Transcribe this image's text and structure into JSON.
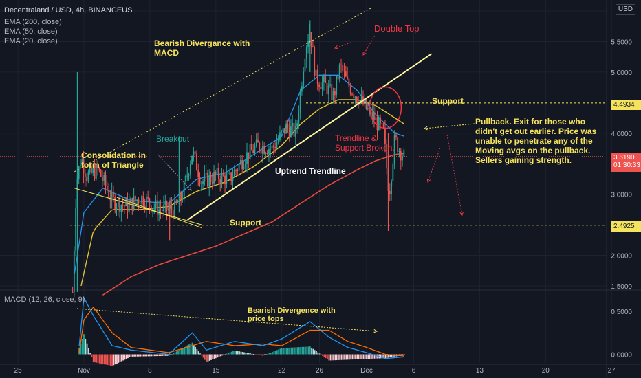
{
  "header": {
    "title": "Decentraland / USD, 4h, BINANCEUS",
    "indicators": [
      "EMA (200, close)",
      "EMA (50, close)",
      "EMA (20, close)"
    ],
    "macd_label": "MACD (12, 26, close, 9)",
    "currency": "USD"
  },
  "price_axis": {
    "ticks": [
      {
        "v": 6.0,
        "label": "6."
      },
      {
        "v": 5.5,
        "label": "5.5000"
      },
      {
        "v": 5.0,
        "label": "5.0000"
      },
      {
        "v": 4.0,
        "label": "4.0000"
      },
      {
        "v": 3.0,
        "label": "3.0000"
      },
      {
        "v": 2.0,
        "label": "2.0000"
      },
      {
        "v": 1.5,
        "label": "1.5000"
      }
    ],
    "current_price": "3.6190",
    "countdown": "01:30:33",
    "support_levels": [
      "4.4934",
      "2.4925"
    ]
  },
  "macd_axis": {
    "ticks": [
      {
        "v": 0.5,
        "label": "0.5000"
      },
      {
        "v": 0.0,
        "label": "0.0000"
      }
    ]
  },
  "time_axis": {
    "ticks": [
      {
        "t": -7,
        "label": "25"
      },
      {
        "t": 0,
        "label": "Nov"
      },
      {
        "t": 7,
        "label": "8"
      },
      {
        "t": 14,
        "label": "15"
      },
      {
        "t": 21,
        "label": "22"
      },
      {
        "t": 25,
        "label": "26"
      },
      {
        "t": 30,
        "label": "Dec"
      },
      {
        "t": 35,
        "label": "6"
      },
      {
        "t": 42,
        "label": "13"
      },
      {
        "t": 49,
        "label": "20"
      },
      {
        "t": 56,
        "label": "27"
      }
    ]
  },
  "annotations": {
    "divergence_macd": "Bearish Divergance with MACD",
    "double_top": "Double Top",
    "support_top": "Support",
    "support_bottom": "Support",
    "breakout": "Breakout",
    "consolidation": "Consolidation in form of Triangle",
    "uptrend": "Uptrend Trendline",
    "trendline_broken": "Trendline & Support Broken.",
    "pullback": "Pullback. Exit for those who didn't get out earlier. Price was unable to penetrate any of the Moving avgs on the pullback. Sellers gaining strength.",
    "divergence_price": "Bearish Divergence with price tops"
  },
  "colors": {
    "background": "#131722",
    "up": "#26a69a",
    "down": "#ef5350",
    "ema200": "#e84a3f",
    "ema50": "#e5c430",
    "ema20": "#2196f3",
    "macd_line": "#2196f3",
    "signal_line": "#ff6d00",
    "annotation_yellow": "#f5e35b",
    "annotation_red": "#f23645",
    "trendline": "#fff59d"
  },
  "chart_data": {
    "type": "candlestick",
    "x_unit": "days since Oct 31",
    "price_range": [
      1.5,
      6.0
    ],
    "macd_range": [
      -0.1,
      0.7
    ],
    "price_anchors": [
      {
        "t": -1.2,
        "close": 1.4
      },
      {
        "t": -0.8,
        "close": 3.2
      },
      {
        "t": -0.3,
        "close": 3.6
      },
      {
        "t": 0.3,
        "close": 3.3
      },
      {
        "t": 1.5,
        "close": 3.4
      },
      {
        "t": 3,
        "close": 2.9
      },
      {
        "t": 4.5,
        "close": 2.8
      },
      {
        "t": 6,
        "close": 2.95
      },
      {
        "t": 8,
        "close": 2.75
      },
      {
        "t": 9.6,
        "close": 2.75
      },
      {
        "t": 10.5,
        "close": 3.0
      },
      {
        "t": 11.5,
        "close": 3.7
      },
      {
        "t": 12.5,
        "close": 3.2
      },
      {
        "t": 14,
        "close": 3.3
      },
      {
        "t": 15.5,
        "close": 3.25
      },
      {
        "t": 17,
        "close": 3.6
      },
      {
        "t": 18.5,
        "close": 3.8
      },
      {
        "t": 20,
        "close": 3.75
      },
      {
        "t": 21.5,
        "close": 4.1
      },
      {
        "t": 22.5,
        "close": 4.0
      },
      {
        "t": 23.5,
        "close": 5.4
      },
      {
        "t": 24,
        "close": 5.7
      },
      {
        "t": 24.6,
        "close": 4.9
      },
      {
        "t": 25.5,
        "close": 4.8
      },
      {
        "t": 26.5,
        "close": 4.6
      },
      {
        "t": 27.2,
        "close": 5.1
      },
      {
        "t": 28,
        "close": 4.8
      },
      {
        "t": 29,
        "close": 4.6
      },
      {
        "t": 30,
        "close": 4.4
      },
      {
        "t": 31,
        "close": 4.2
      },
      {
        "t": 31.8,
        "close": 4.0
      },
      {
        "t": 32.4,
        "close": 3.0
      },
      {
        "t": 33,
        "close": 3.9
      },
      {
        "t": 33.6,
        "close": 3.7
      },
      {
        "t": 34,
        "close": 3.62
      }
    ],
    "ema20": [
      [
        -1,
        1.7
      ],
      [
        0,
        2.7
      ],
      [
        2,
        3.1
      ],
      [
        5,
        2.9
      ],
      [
        9,
        2.85
      ],
      [
        12,
        3.25
      ],
      [
        15,
        3.35
      ],
      [
        18,
        3.65
      ],
      [
        21,
        3.95
      ],
      [
        23,
        4.7
      ],
      [
        25,
        4.95
      ],
      [
        27,
        4.95
      ],
      [
        29,
        4.7
      ],
      [
        31,
        4.3
      ],
      [
        33,
        4.0
      ],
      [
        34,
        3.95
      ]
    ],
    "ema50": [
      [
        -0.3,
        1.5
      ],
      [
        1,
        2.4
      ],
      [
        3,
        2.75
      ],
      [
        6,
        2.75
      ],
      [
        9,
        2.8
      ],
      [
        12,
        3.05
      ],
      [
        15,
        3.2
      ],
      [
        18,
        3.45
      ],
      [
        21,
        3.8
      ],
      [
        23,
        4.15
      ],
      [
        25,
        4.4
      ],
      [
        27,
        4.55
      ],
      [
        29,
        4.55
      ],
      [
        31,
        4.45
      ],
      [
        33,
        4.25
      ],
      [
        34,
        4.15
      ]
    ],
    "ema200": [
      [
        2,
        1.35
      ],
      [
        5,
        1.65
      ],
      [
        8,
        1.85
      ],
      [
        11,
        2.0
      ],
      [
        14,
        2.15
      ],
      [
        17,
        2.35
      ],
      [
        20,
        2.55
      ],
      [
        23,
        2.85
      ],
      [
        26,
        3.15
      ],
      [
        29,
        3.4
      ],
      [
        31,
        3.55
      ],
      [
        33,
        3.65
      ],
      [
        34,
        3.67
      ]
    ],
    "macd_anchors": [
      {
        "t": -0.5,
        "macd": 0.1,
        "signal": 0.02
      },
      {
        "t": 0,
        "macd": 0.66,
        "signal": 0.4
      },
      {
        "t": 1,
        "macd": 0.45,
        "signal": 0.55
      },
      {
        "t": 3,
        "macd": 0.1,
        "signal": 0.25
      },
      {
        "t": 5,
        "macd": 0.05,
        "signal": 0.08
      },
      {
        "t": 9,
        "macd": 0.0,
        "signal": 0.02
      },
      {
        "t": 11.5,
        "macd": 0.25,
        "signal": 0.1
      },
      {
        "t": 13,
        "macd": 0.05,
        "signal": 0.15
      },
      {
        "t": 16,
        "macd": 0.15,
        "signal": 0.1
      },
      {
        "t": 19,
        "macd": 0.1,
        "signal": 0.12
      },
      {
        "t": 21,
        "macd": 0.18,
        "signal": 0.1
      },
      {
        "t": 24,
        "macd": 0.38,
        "signal": 0.28
      },
      {
        "t": 26,
        "macd": 0.2,
        "signal": 0.28
      },
      {
        "t": 28,
        "macd": 0.08,
        "signal": 0.15
      },
      {
        "t": 30,
        "macd": 0.02,
        "signal": 0.08
      },
      {
        "t": 32,
        "macd": -0.05,
        "signal": 0.0
      },
      {
        "t": 34,
        "macd": -0.03,
        "signal": -0.02
      }
    ]
  }
}
